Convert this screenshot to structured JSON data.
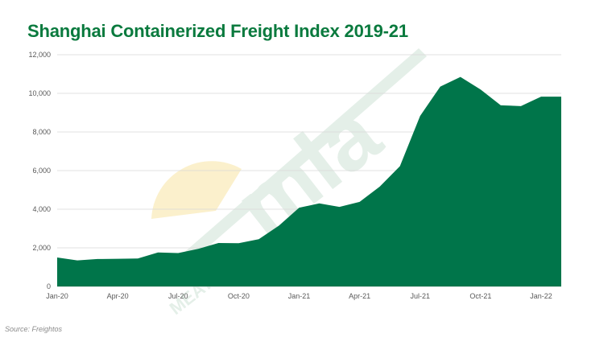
{
  "colors": {
    "title": "#0a7a3e",
    "area_fill": "#00754a",
    "grid": "#d9d9d9",
    "watermark_green": "#e4efe8",
    "watermark_sun": "#fbf0cc"
  },
  "watermark": {
    "logo_text": "mla",
    "sub_text": "MEAT"
  },
  "source": "Source: Freightos",
  "chart_data": {
    "type": "area",
    "title": "Shanghai Containerized Freight Index 2019-21",
    "xlabel": "",
    "ylabel": "",
    "ylim": [
      0,
      12000
    ],
    "grid": true,
    "y_ticks": [
      {
        "value": 0,
        "label": "0"
      },
      {
        "value": 2000,
        "label": "2,000"
      },
      {
        "value": 4000,
        "label": "4,000"
      },
      {
        "value": 6000,
        "label": "6,000"
      },
      {
        "value": 8000,
        "label": "8,000"
      },
      {
        "value": 10000,
        "label": "10,000"
      },
      {
        "value": 12000,
        "label": "12,000"
      }
    ],
    "x_ticks": [
      {
        "index": 0,
        "label": "Jan-20"
      },
      {
        "index": 3,
        "label": "Apr-20"
      },
      {
        "index": 6,
        "label": "Jul-20"
      },
      {
        "index": 9,
        "label": "Oct-20"
      },
      {
        "index": 12,
        "label": "Jan-21"
      },
      {
        "index": 15,
        "label": "Apr-21"
      },
      {
        "index": 18,
        "label": "Jul-21"
      },
      {
        "index": 21,
        "label": "Oct-21"
      },
      {
        "index": 24,
        "label": "Jan-22"
      }
    ],
    "x": [
      "Jan-20",
      "Feb-20",
      "Mar-20",
      "Apr-20",
      "May-20",
      "Jun-20",
      "Jul-20",
      "Aug-20",
      "Sep-20",
      "Oct-20",
      "Nov-20",
      "Dec-20",
      "Jan-21",
      "Feb-21",
      "Mar-21",
      "Apr-21",
      "May-21",
      "Jun-21",
      "Jul-21",
      "Aug-21",
      "Sep-21",
      "Oct-21",
      "Nov-21",
      "Dec-21",
      "Jan-22",
      "Feb-22"
    ],
    "series": [
      {
        "values": [
          1500,
          1350,
          1420,
          1430,
          1450,
          1760,
          1730,
          1950,
          2250,
          2240,
          2450,
          3150,
          4080,
          4300,
          4120,
          4380,
          5170,
          6230,
          8830,
          10350,
          10850,
          10200,
          9380,
          9340,
          9830,
          9830
        ]
      }
    ]
  }
}
